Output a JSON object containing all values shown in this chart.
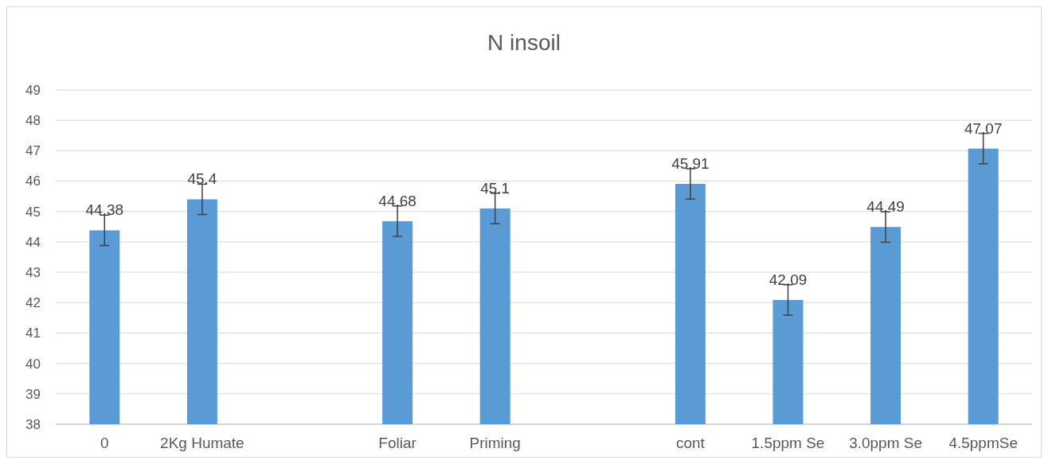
{
  "chart_data": {
    "type": "bar",
    "title": "N insoil",
    "categories": [
      "0",
      "2Kg Humate",
      null,
      "Foliar",
      "Priming",
      null,
      "cont",
      "1.5ppm Se",
      "3.0ppm Se",
      "4.5ppmSe"
    ],
    "values": [
      44.38,
      45.4,
      null,
      44.68,
      45.1,
      null,
      45.91,
      42.09,
      44.49,
      47.07
    ],
    "errors": [
      0.5,
      0.5,
      null,
      0.5,
      0.5,
      null,
      0.5,
      0.5,
      0.5,
      0.5
    ],
    "color": "#5b9bd5",
    "ylim": [
      38,
      49
    ],
    "yticks": [
      38,
      39,
      40,
      41,
      42,
      43,
      44,
      45,
      46,
      47,
      48,
      49
    ],
    "grid": "y",
    "data_labels": true
  }
}
